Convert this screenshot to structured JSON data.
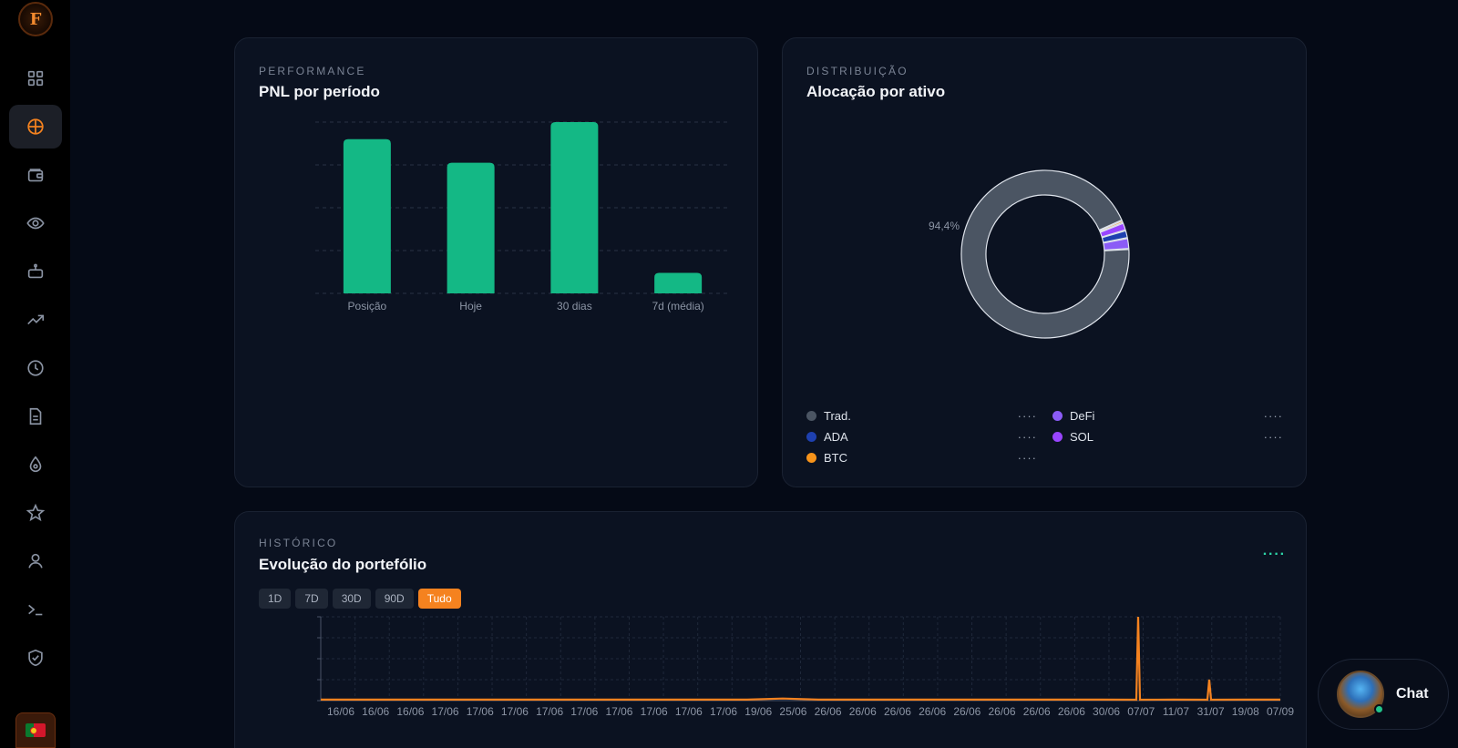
{
  "sidebar": {
    "logo_text": "F",
    "items": [
      {
        "icon": "grid-icon",
        "label": "Dashboard"
      },
      {
        "icon": "crosshair-icon",
        "label": "Portfolio",
        "active": true
      },
      {
        "icon": "wallet-icon",
        "label": "Wallet"
      },
      {
        "icon": "eye-icon",
        "label": "Watchlist"
      },
      {
        "icon": "robot-icon",
        "label": "Bots"
      },
      {
        "icon": "trending-up-icon",
        "label": "Trends"
      },
      {
        "icon": "clock-icon",
        "label": "History"
      },
      {
        "icon": "document-icon",
        "label": "Reports"
      },
      {
        "icon": "drop-icon",
        "label": "Liquidity"
      },
      {
        "icon": "star-icon",
        "label": "Favorites"
      },
      {
        "icon": "user-icon",
        "label": "Profile"
      },
      {
        "icon": "terminal-icon",
        "label": "Console"
      },
      {
        "icon": "shield-check-icon",
        "label": "Security"
      }
    ],
    "language_flag": "pt-flag-icon"
  },
  "pnl": {
    "eyebrow": "PERFORMANCE",
    "title": "PNL por período"
  },
  "alloc": {
    "eyebrow": "DISTRIBUIÇÃO",
    "title": "Alocação por ativo",
    "donut_label": "94,4%",
    "legend": [
      {
        "name": "Trad.",
        "color": "#4b5563",
        "value": "····"
      },
      {
        "name": "DeFi",
        "color": "#8b5cf6",
        "value": "····"
      },
      {
        "name": "ADA",
        "color": "#1e40af",
        "value": "····"
      },
      {
        "name": "SOL",
        "color": "#9945ff",
        "value": "····"
      },
      {
        "name": "BTC",
        "color": "#f7931a",
        "value": "····"
      }
    ]
  },
  "hist": {
    "eyebrow": "HISTÓRICO",
    "title": "Evolução do portefólio",
    "menu": "····",
    "ranges": [
      "1D",
      "7D",
      "30D",
      "90D",
      "Tudo"
    ],
    "active_range": "Tudo"
  },
  "chat": {
    "label": "Chat"
  },
  "chart_data": [
    {
      "type": "bar",
      "title": "PNL por período",
      "categories": [
        "Posição",
        "Hoje",
        "30 dias",
        "7d (média)"
      ],
      "values": [
        3.6,
        3.05,
        4.0,
        0.48
      ],
      "ylim": [
        0,
        4.0
      ],
      "grid": true,
      "color": "#14b885"
    },
    {
      "type": "pie",
      "title": "Alocação por ativo",
      "donut": true,
      "labels": [
        "Trad.",
        "BTC",
        "SOL",
        "ADA",
        "DeFi"
      ],
      "values": [
        94.4,
        0.5,
        1.5,
        1.5,
        2.1
      ],
      "colors": [
        "#4b5563",
        "#f7931a",
        "#9945ff",
        "#1e40af",
        "#8b5cf6"
      ],
      "label_shown": "94,4%"
    },
    {
      "type": "line",
      "title": "Evolução do portefólio",
      "x": [
        "16/06",
        "16/06",
        "16/06",
        "17/06",
        "17/06",
        "17/06",
        "17/06",
        "17/06",
        "17/06",
        "17/06",
        "17/06",
        "17/06",
        "19/06",
        "25/06",
        "26/06",
        "26/06",
        "26/06",
        "26/06",
        "26/06",
        "26/06",
        "26/06",
        "26/06",
        "30/06",
        "07/07",
        "11/07",
        "31/07",
        "19/08",
        "07/09"
      ],
      "series": [
        {
          "values": [
            0.5,
            0.5,
            0.5,
            0.5,
            0.5,
            0.5,
            0.5,
            0.5,
            0.5,
            0.5,
            0.5,
            0.5,
            0.5,
            1.0,
            0.5,
            0.5,
            0.5,
            0.5,
            0.5,
            0.5,
            0.5,
            0.5,
            0.5,
            40,
            0.5,
            10,
            0.5,
            0.5
          ]
        }
      ],
      "ylim": [
        0,
        40
      ],
      "grid": true,
      "color": "#f5821f"
    }
  ]
}
